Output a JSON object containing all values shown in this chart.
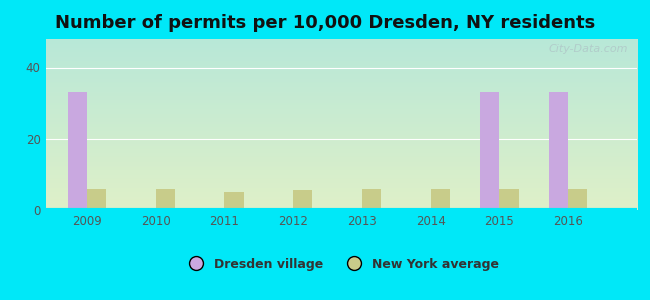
{
  "title": "Number of permits per 10,000 Dresden, NY residents",
  "years": [
    2009,
    2010,
    2011,
    2012,
    2013,
    2014,
    2015,
    2016
  ],
  "dresden_values": [
    33,
    0,
    0,
    0,
    0,
    0,
    33,
    33
  ],
  "ny_values": [
    6,
    6,
    5,
    5.5,
    6,
    6,
    6,
    6
  ],
  "dresden_color": "#c9a8e0",
  "ny_color": "#c8cc8a",
  "bg_color": "#00e8f8",
  "grad_top": "#b8e8d8",
  "grad_bottom": "#dff0c8",
  "ylim": [
    0,
    48
  ],
  "yticks": [
    0,
    20,
    40
  ],
  "bar_width": 0.28,
  "legend_dresden": "Dresden village",
  "legend_ny": "New York average",
  "title_fontsize": 13,
  "watermark": "City-Data.com",
  "grid_color": "#d0e8d0",
  "tick_color": "#555555"
}
